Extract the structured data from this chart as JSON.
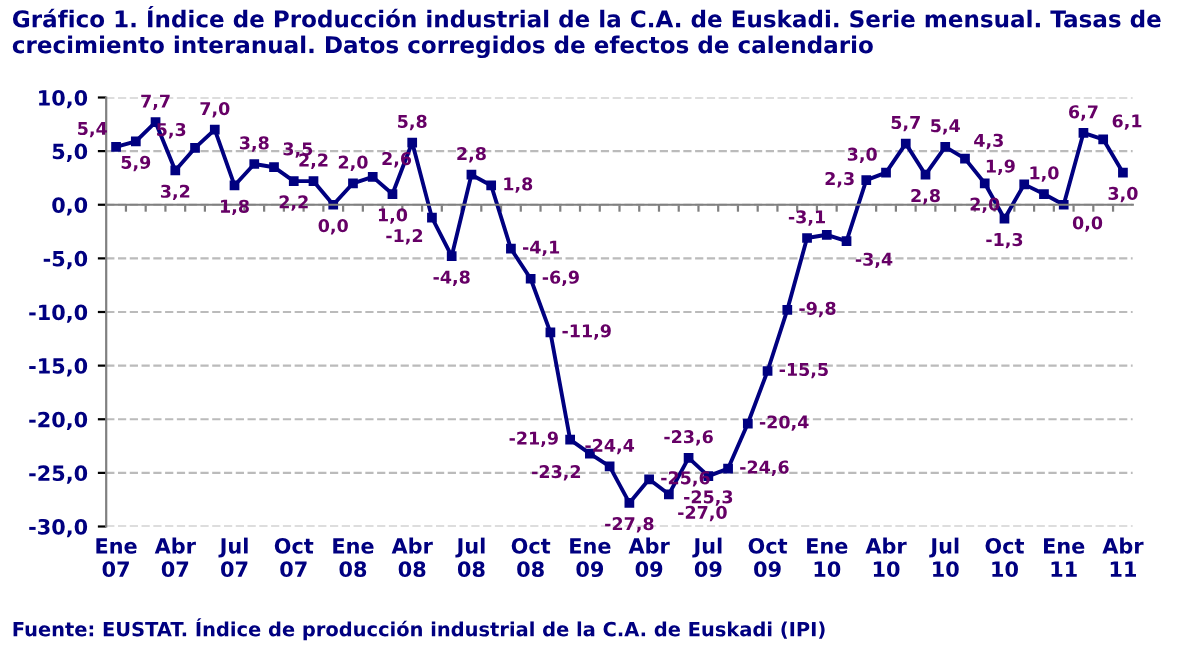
{
  "chart_data": {
    "type": "line",
    "title": "Gráfico 1. Índice de Producción industrial de la C.A. de Euskadi. Serie mensual. Tasas de crecimiento interanual. Datos corregidos de efectos de calendario",
    "categories": [
      "Ene\n07",
      null,
      null,
      "Abr\n07",
      null,
      null,
      "Jul\n07",
      null,
      null,
      "Oct\n07",
      null,
      null,
      "Ene\n08",
      null,
      null,
      "Abr\n08",
      null,
      null,
      "Jul\n08",
      null,
      null,
      "Oct\n08",
      null,
      null,
      "Ene\n09",
      null,
      null,
      "Abr\n09",
      null,
      null,
      "Jul\n09",
      null,
      null,
      "Oct\n09",
      null,
      null,
      "Ene\n10",
      null,
      null,
      "Abr\n10",
      null,
      null,
      "Jul\n10",
      null,
      null,
      "Oct\n10",
      null,
      null,
      "Ene\n11",
      null,
      null,
      "Abr\n11"
    ],
    "series": [
      {
        "color": "#000080",
        "values": [
          5.4,
          5.9,
          7.7,
          3.2,
          5.3,
          7.0,
          1.8,
          3.8,
          3.5,
          2.2,
          2.2,
          0.0,
          2.0,
          2.6,
          1.0,
          5.8,
          -1.2,
          -4.8,
          2.8,
          1.8,
          -4.1,
          -6.9,
          -11.9,
          -21.9,
          -23.2,
          -24.4,
          -27.8,
          -25.6,
          -27.0,
          -23.6,
          -25.3,
          -24.6,
          -20.4,
          -15.5,
          -9.8,
          -3.1,
          -2.8,
          -3.4,
          2.3,
          3.0,
          5.7,
          2.8,
          5.4,
          4.3,
          2.0,
          -1.3,
          1.9,
          1.0,
          0.0,
          6.7,
          6.1,
          3.0
        ],
        "value_labels": [
          "5,4",
          "5,9",
          "7,7",
          "3,2",
          "5,3",
          "7,0",
          "1,8",
          "3,8",
          "3,5",
          "2,2",
          "2,2",
          "0,0",
          "2,0",
          "2,6",
          "1,0",
          "5,8",
          "-1,2",
          "-4,8",
          "2,8",
          "1,8",
          "-4,1",
          "-6,9",
          "-11,9",
          "-21,9",
          "-23,2",
          "-24,4",
          "-27,8",
          "-25,6",
          "-27,0",
          "-23,6",
          "-25,3",
          "-24,6",
          "-20,4",
          "-15,5",
          "-9,8",
          "-3,1",
          null,
          "-3,4",
          "2,3",
          "3,0",
          "5,7",
          "2,8",
          "5,4",
          "4,3",
          "2,0",
          "-1,3",
          "1,9",
          "1,0",
          "0,0",
          "6,7",
          "6,1",
          "3,0"
        ]
      }
    ],
    "ylim": [
      -30,
      10
    ],
    "yticks": [
      {
        "value": -30,
        "label": "-30,0"
      },
      {
        "value": -25,
        "label": "-25,0"
      },
      {
        "value": -20,
        "label": "-20,0"
      },
      {
        "value": -15,
        "label": "-15,0"
      },
      {
        "value": -10,
        "label": "-10,0"
      },
      {
        "value": -5,
        "label": "-5,0"
      },
      {
        "value": 0,
        "label": "0,0"
      },
      {
        "value": 5,
        "label": "5,0"
      },
      {
        "value": 10,
        "label": "10,0"
      }
    ],
    "grid": "y",
    "marker": "square",
    "line_style": "solid",
    "legend": false,
    "annotations": [
      "Fuente: EUSTAT. Índice de producción industrial de la C.A. de Euskadi (IPI)"
    ]
  }
}
